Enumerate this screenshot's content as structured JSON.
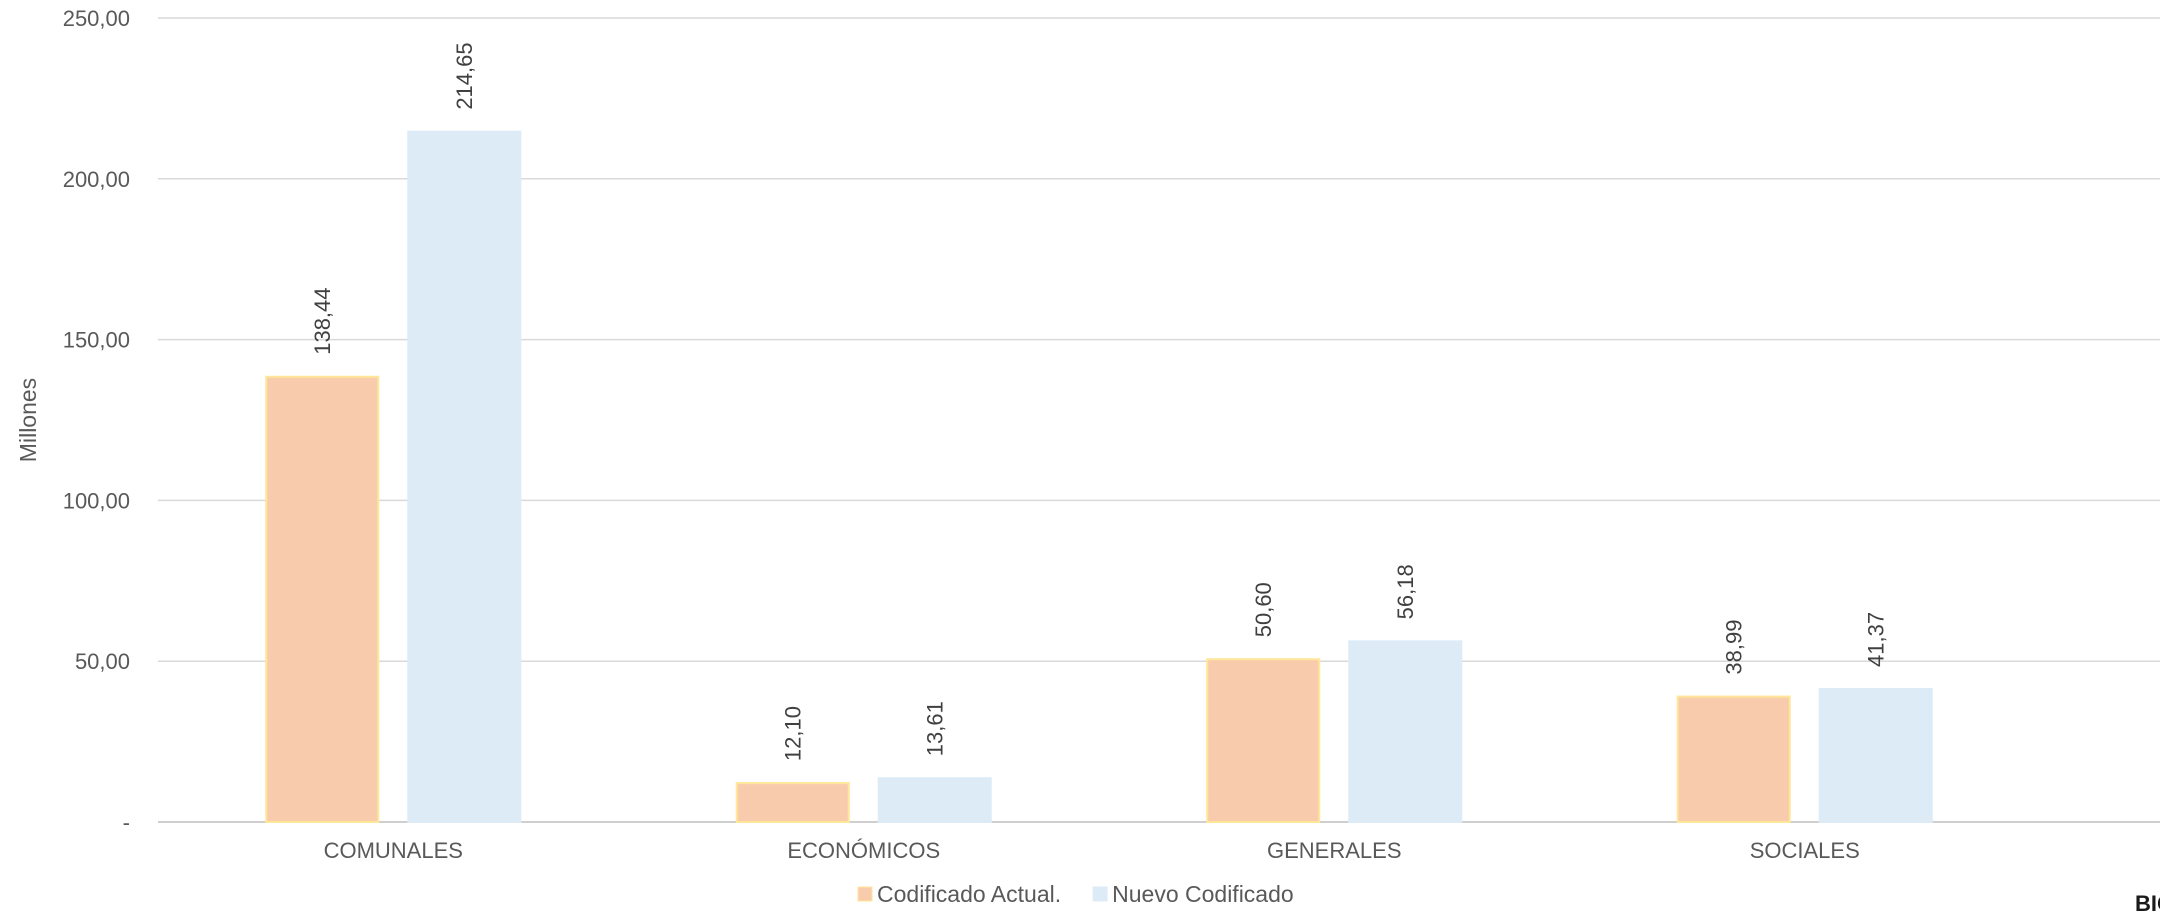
{
  "chart_data": {
    "type": "bar",
    "ylabel": "Millones",
    "ylim": [
      0,
      250
    ],
    "yticks": [
      0,
      50,
      100,
      150,
      200,
      250
    ],
    "ytick_labels": [
      "-",
      "50,00",
      "100,00",
      "150,00",
      "200,00",
      "250,00"
    ],
    "grid": true,
    "legend_position": "bottom",
    "categories": [
      "COMUNALES",
      "ECONÓMICOS",
      "GENERALES",
      "SOCIALES"
    ],
    "series": [
      {
        "name": "Codificado Actual.",
        "color": "#f8cbad",
        "border_color": "#ffe699",
        "values": [
          138.44,
          12.1,
          50.6,
          38.99
        ],
        "labels": [
          "138,44",
          "12,10",
          "50,60",
          "38,99"
        ]
      },
      {
        "name": "Nuevo Codificado",
        "color": "#ddebf7",
        "border_color": "#ddebf7",
        "values": [
          214.65,
          13.61,
          56.18,
          41.37
        ],
        "labels": [
          "214,65",
          "13,61",
          "56,18",
          "41,37"
        ]
      }
    ]
  },
  "corner_text": "BIO"
}
